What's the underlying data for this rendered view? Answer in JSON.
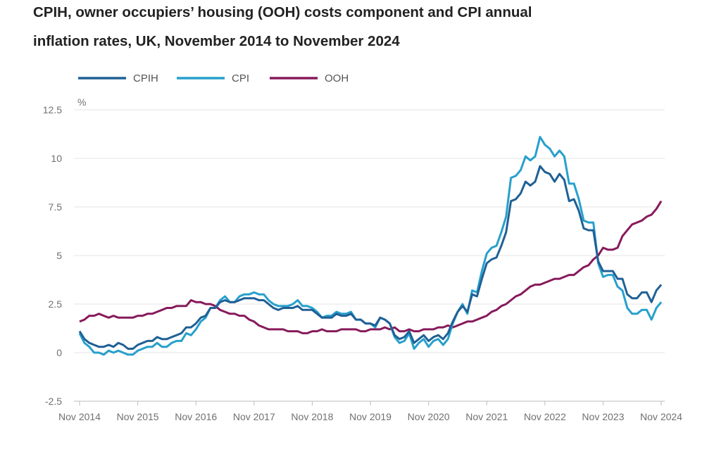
{
  "title_line1": "CPIH, owner occupiers’ housing (OOH) costs component and CPI annual",
  "title_line2": "inflation rates, UK, November 2014 to November 2024",
  "chart_data": {
    "type": "line",
    "ylabel": "%",
    "ylim": [
      -2.5,
      12.5
    ],
    "yticks": [
      "12.5",
      "10",
      "7.5",
      "5",
      "2.5",
      "0",
      "-2.5"
    ],
    "ytick_values": [
      12.5,
      10,
      7.5,
      5,
      2.5,
      0,
      -2.5
    ],
    "xticks": [
      "Nov 2014",
      "Nov 2015",
      "Nov 2016",
      "Nov 2017",
      "Nov 2018",
      "Nov 2019",
      "Nov 2020",
      "Nov 2021",
      "Nov 2022",
      "Nov 2023",
      "Nov 2024"
    ],
    "x_range": [
      "Nov 2014",
      "Nov 2024"
    ],
    "frequency": "monthly",
    "grid": true,
    "legend_position": "top-left",
    "series": [
      {
        "name": "CPIH",
        "color": "#206095",
        "values": [
          1.1,
          0.7,
          0.5,
          0.4,
          0.3,
          0.3,
          0.4,
          0.3,
          0.5,
          0.4,
          0.2,
          0.2,
          0.4,
          0.5,
          0.6,
          0.6,
          0.8,
          0.7,
          0.7,
          0.8,
          0.9,
          1.0,
          1.3,
          1.3,
          1.5,
          1.8,
          1.9,
          2.3,
          2.3,
          2.6,
          2.7,
          2.6,
          2.6,
          2.7,
          2.8,
          2.8,
          2.8,
          2.7,
          2.7,
          2.5,
          2.3,
          2.2,
          2.3,
          2.3,
          2.3,
          2.4,
          2.2,
          2.2,
          2.2,
          2.0,
          1.8,
          1.8,
          1.8,
          2.0,
          1.9,
          1.9,
          2.0,
          1.7,
          1.7,
          1.5,
          1.5,
          1.4,
          1.8,
          1.7,
          1.5,
          0.9,
          0.7,
          0.8,
          1.1,
          0.5,
          0.7,
          0.9,
          0.6,
          0.8,
          0.9,
          0.7,
          1.0,
          1.6,
          2.1,
          2.4,
          2.1,
          3.0,
          2.9,
          3.8,
          4.6,
          4.8,
          4.9,
          5.5,
          6.2,
          7.8,
          7.9,
          8.2,
          8.8,
          8.6,
          8.8,
          9.6,
          9.3,
          9.2,
          8.8,
          9.2,
          8.9,
          7.8,
          7.9,
          7.3,
          6.4,
          6.3,
          6.3,
          4.7,
          4.2,
          4.2,
          4.2,
          3.8,
          3.8,
          3.0,
          2.8,
          2.8,
          3.1,
          3.1,
          2.6,
          3.2,
          3.5
        ]
      },
      {
        "name": "CPI",
        "color": "#27a0cc",
        "values": [
          1.0,
          0.5,
          0.3,
          0.0,
          0.0,
          -0.1,
          0.1,
          0.0,
          0.1,
          0.0,
          -0.1,
          -0.1,
          0.1,
          0.2,
          0.3,
          0.3,
          0.5,
          0.3,
          0.3,
          0.5,
          0.6,
          0.6,
          1.0,
          0.9,
          1.2,
          1.6,
          1.8,
          2.3,
          2.3,
          2.7,
          2.9,
          2.6,
          2.6,
          2.9,
          3.0,
          3.0,
          3.1,
          3.0,
          3.0,
          2.7,
          2.5,
          2.4,
          2.4,
          2.4,
          2.5,
          2.7,
          2.4,
          2.4,
          2.3,
          2.1,
          1.8,
          1.9,
          1.9,
          2.1,
          2.0,
          2.0,
          2.1,
          1.7,
          1.7,
          1.5,
          1.5,
          1.3,
          1.8,
          1.7,
          1.5,
          0.8,
          0.5,
          0.6,
          1.0,
          0.2,
          0.5,
          0.7,
          0.3,
          0.6,
          0.7,
          0.4,
          0.7,
          1.5,
          2.1,
          2.5,
          2.0,
          3.2,
          3.1,
          4.2,
          5.1,
          5.4,
          5.5,
          6.2,
          7.0,
          9.0,
          9.1,
          9.4,
          10.1,
          9.9,
          10.1,
          11.1,
          10.7,
          10.5,
          10.1,
          10.4,
          10.1,
          8.7,
          8.7,
          7.9,
          6.8,
          6.7,
          6.7,
          4.6,
          3.9,
          4.0,
          4.0,
          3.4,
          3.2,
          2.3,
          2.0,
          2.0,
          2.2,
          2.2,
          1.7,
          2.3,
          2.6
        ]
      },
      {
        "name": "OOH",
        "color": "#871a5b",
        "values": [
          1.6,
          1.7,
          1.9,
          1.9,
          2.0,
          1.9,
          1.8,
          1.9,
          1.8,
          1.8,
          1.8,
          1.8,
          1.9,
          1.9,
          2.0,
          2.0,
          2.1,
          2.2,
          2.3,
          2.3,
          2.4,
          2.4,
          2.4,
          2.7,
          2.6,
          2.6,
          2.5,
          2.5,
          2.4,
          2.2,
          2.1,
          2.0,
          2.0,
          1.9,
          1.9,
          1.7,
          1.6,
          1.4,
          1.3,
          1.2,
          1.2,
          1.2,
          1.2,
          1.1,
          1.1,
          1.1,
          1.0,
          1.0,
          1.1,
          1.1,
          1.2,
          1.1,
          1.1,
          1.1,
          1.2,
          1.2,
          1.2,
          1.2,
          1.1,
          1.1,
          1.2,
          1.2,
          1.2,
          1.3,
          1.2,
          1.3,
          1.1,
          1.1,
          1.2,
          1.1,
          1.1,
          1.2,
          1.2,
          1.2,
          1.3,
          1.3,
          1.4,
          1.3,
          1.4,
          1.5,
          1.6,
          1.6,
          1.7,
          1.8,
          1.9,
          2.1,
          2.2,
          2.4,
          2.5,
          2.7,
          2.9,
          3.0,
          3.2,
          3.4,
          3.5,
          3.5,
          3.6,
          3.7,
          3.8,
          3.8,
          3.9,
          4.0,
          4.0,
          4.2,
          4.4,
          4.5,
          4.8,
          5.0,
          5.4,
          5.3,
          5.3,
          5.4,
          6.0,
          6.3,
          6.6,
          6.7,
          6.8,
          7.0,
          7.1,
          7.4,
          7.8
        ]
      }
    ]
  }
}
